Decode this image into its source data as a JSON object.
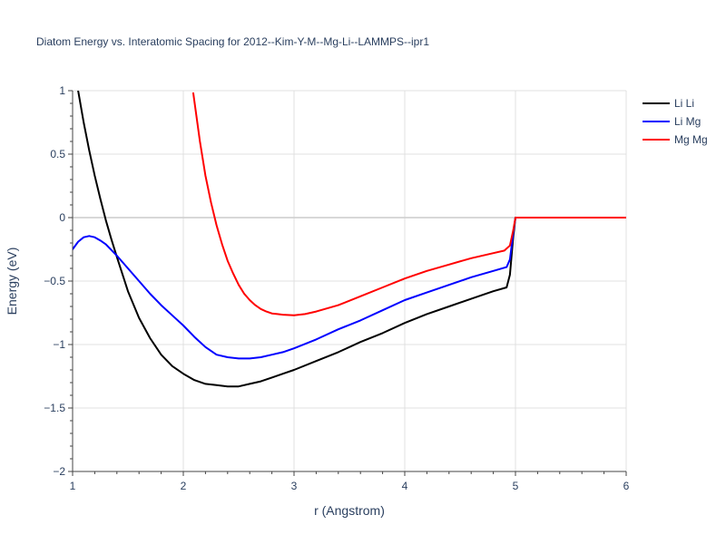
{
  "chart_data": {
    "type": "line",
    "title": "Diatom Energy vs. Interatomic Spacing for 2012--Kim-Y-M--Mg-Li--LAMMPS--ipr1",
    "xlabel": "r (Angstrom)",
    "ylabel": "Energy (eV)",
    "xlim": [
      1,
      6
    ],
    "ylim": [
      -2,
      1
    ],
    "x_ticks": [
      1,
      2,
      3,
      4,
      5,
      6
    ],
    "x_tick_labels": [
      "1",
      "2",
      "3",
      "4",
      "5",
      "6"
    ],
    "y_ticks": [
      -2,
      -1.5,
      -1,
      -0.5,
      0,
      0.5,
      1
    ],
    "y_tick_labels": [
      "−2",
      "−1.5",
      "−1",
      "−0.5",
      "0",
      "0.5",
      "1"
    ],
    "grid": true,
    "legend_position": "top-right",
    "series": [
      {
        "name": "Li Li",
        "color": "#000000",
        "x": [
          1.05,
          1.1,
          1.15,
          1.2,
          1.25,
          1.3,
          1.35,
          1.4,
          1.5,
          1.6,
          1.7,
          1.8,
          1.9,
          2.0,
          2.1,
          2.2,
          2.3,
          2.4,
          2.5,
          2.6,
          2.7,
          2.8,
          2.9,
          3.0,
          3.2,
          3.4,
          3.6,
          3.8,
          4.0,
          4.2,
          4.4,
          4.6,
          4.8,
          4.92,
          4.95,
          4.98,
          5.0,
          5.5,
          6.0
        ],
        "y": [
          1.0,
          0.75,
          0.53,
          0.33,
          0.15,
          -0.02,
          -0.17,
          -0.31,
          -0.58,
          -0.79,
          -0.95,
          -1.08,
          -1.17,
          -1.23,
          -1.28,
          -1.31,
          -1.32,
          -1.33,
          -1.33,
          -1.31,
          -1.29,
          -1.26,
          -1.23,
          -1.2,
          -1.13,
          -1.06,
          -0.98,
          -0.91,
          -0.83,
          -0.76,
          -0.7,
          -0.64,
          -0.58,
          -0.55,
          -0.45,
          -0.15,
          0.0,
          0.0,
          0.0
        ]
      },
      {
        "name": "Li Mg",
        "color": "#0000ff",
        "x": [
          1.0,
          1.05,
          1.1,
          1.15,
          1.2,
          1.25,
          1.3,
          1.4,
          1.5,
          1.6,
          1.7,
          1.8,
          1.9,
          2.0,
          2.1,
          2.2,
          2.3,
          2.4,
          2.5,
          2.6,
          2.7,
          2.8,
          2.9,
          3.0,
          3.2,
          3.4,
          3.6,
          3.8,
          4.0,
          4.2,
          4.4,
          4.6,
          4.8,
          4.92,
          4.95,
          4.98,
          5.0,
          5.5,
          6.0
        ],
        "y": [
          -0.25,
          -0.19,
          -0.155,
          -0.145,
          -0.155,
          -0.18,
          -0.21,
          -0.3,
          -0.4,
          -0.5,
          -0.6,
          -0.69,
          -0.77,
          -0.85,
          -0.94,
          -1.02,
          -1.08,
          -1.1,
          -1.11,
          -1.11,
          -1.1,
          -1.08,
          -1.06,
          -1.03,
          -0.96,
          -0.88,
          -0.81,
          -0.73,
          -0.65,
          -0.59,
          -0.53,
          -0.47,
          -0.42,
          -0.39,
          -0.33,
          -0.12,
          0.0,
          0.0,
          0.0
        ]
      },
      {
        "name": "Mg Mg",
        "color": "#ff0000",
        "x": [
          2.09,
          2.15,
          2.2,
          2.25,
          2.3,
          2.35,
          2.4,
          2.45,
          2.5,
          2.55,
          2.6,
          2.65,
          2.7,
          2.75,
          2.8,
          2.85,
          2.9,
          3.0,
          3.1,
          3.2,
          3.4,
          3.6,
          3.8,
          4.0,
          4.2,
          4.4,
          4.6,
          4.8,
          4.9,
          4.95,
          4.98,
          5.0,
          5.5,
          6.0
        ],
        "y": [
          0.98,
          0.6,
          0.33,
          0.12,
          -0.06,
          -0.21,
          -0.34,
          -0.44,
          -0.53,
          -0.6,
          -0.65,
          -0.69,
          -0.72,
          -0.74,
          -0.755,
          -0.76,
          -0.765,
          -0.77,
          -0.76,
          -0.74,
          -0.69,
          -0.62,
          -0.55,
          -0.48,
          -0.42,
          -0.37,
          -0.32,
          -0.28,
          -0.26,
          -0.22,
          -0.1,
          0.0,
          0.0,
          0.0
        ]
      }
    ]
  }
}
